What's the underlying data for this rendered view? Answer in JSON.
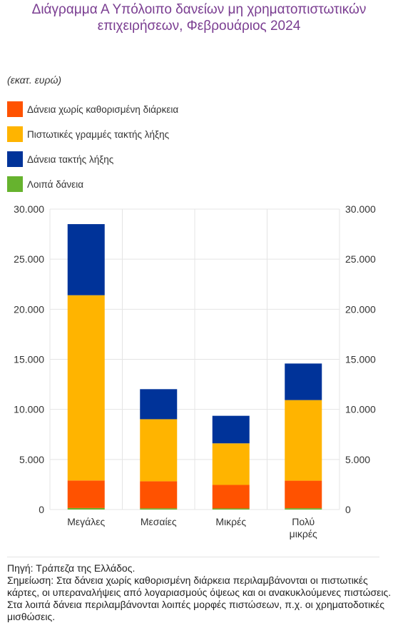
{
  "title": "Διάγραμμα Α Υπόλοιπο δανείων μη χρηματοπιστωτικών επιχειρήσεων, Φεβρουάριος 2024",
  "unit_label": "(εκατ. ευρώ)",
  "footer": {
    "source": "Πηγή: Τράπεζα της Ελλάδος.",
    "note": "Σημείωση: Στα δάνεια χωρίς καθορισμένη διάρκεια περιλαμβάνονται οι πιστωτικές κάρτες, οι υπεραναλήψεις από λογαριασμούς όψεως και οι ανακυκλούμενες πιστώσεις. Στα λοιπά δάνεια περιλαμβάνονται λοιπές μορφές πιστώσεων, π.χ. οι χρηματοδοτικές μισθώσεις."
  },
  "chart_data": {
    "type": "bar",
    "stacked": true,
    "categories": [
      "Μεγάλες",
      "Μεσαίες",
      "Μικρές",
      "Πολύ μικρές"
    ],
    "series": [
      {
        "name": "Λοιπά δάνεια",
        "color": "#66b32e",
        "values": [
          150,
          120,
          110,
          130
        ]
      },
      {
        "name": "Δάνεια χωρίς καθορισμένη διάρκεια",
        "color": "#ff5200",
        "values": [
          2750,
          2700,
          2350,
          2750
        ]
      },
      {
        "name": "Πιστωτικές γραμμές τακτής λήξης",
        "color": "#ffb400",
        "values": [
          18500,
          6200,
          4150,
          8050
        ]
      },
      {
        "name": "Δάνεια τακτής λήξης",
        "color": "#003399",
        "values": [
          7100,
          3000,
          2750,
          3650
        ]
      }
    ],
    "legend_order": [
      "Δάνεια χωρίς καθορισμένη διάρκεια",
      "Πιστωτικές γραμμές τακτής λήξης",
      "Δάνεια τακτής λήξης",
      "Λοιπά δάνεια"
    ],
    "ylim": [
      0,
      30000
    ],
    "yticks": [
      0,
      5000,
      10000,
      15000,
      20000,
      25000,
      30000
    ],
    "ytick_labels": [
      "0",
      "5.000",
      "10.000",
      "15.000",
      "20.000",
      "25.000",
      "30.000"
    ],
    "grid": true,
    "secondary_axis": true,
    "legend_position": "top-left"
  }
}
